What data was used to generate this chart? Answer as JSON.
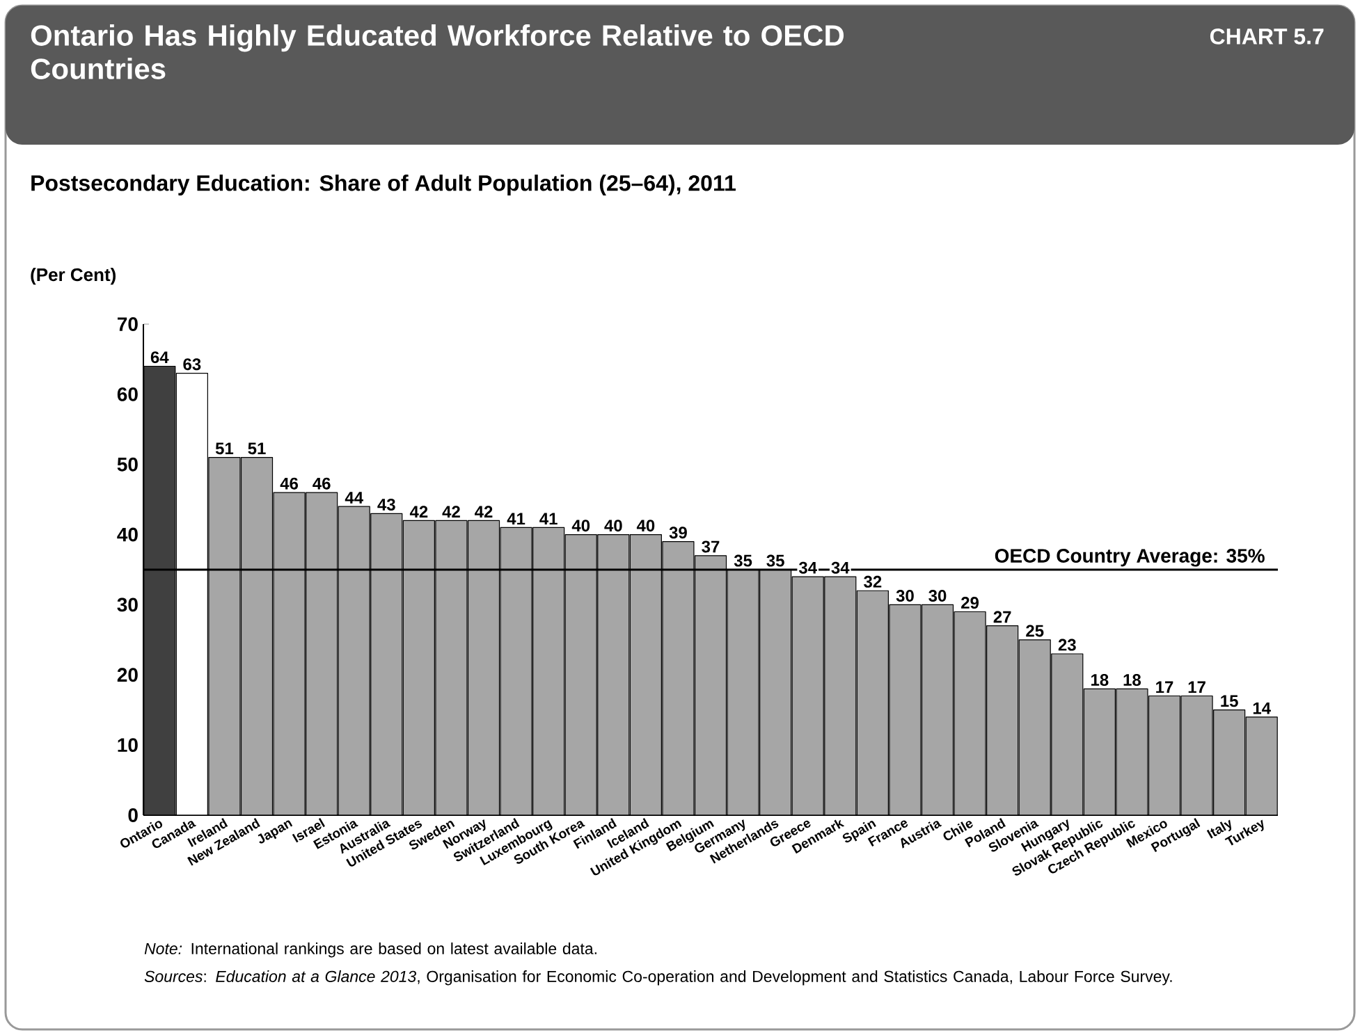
{
  "chart_data": {
    "type": "bar",
    "title": "Ontario Has Highly Educated Workforce Relative to OECD Countries",
    "subtitle": "Postsecondary Education: Share of Adult Population (25–64), 2011",
    "ylabel": "(Per Cent)",
    "categories": [
      "Ontario",
      "Canada",
      "Ireland",
      "New Zealand",
      "Japan",
      "Israel",
      "Estonia",
      "Australia",
      "United States",
      "Sweden",
      "Norway",
      "Switzerland",
      "Luxembourg",
      "South Korea",
      "Finland",
      "Iceland",
      "United Kingdom",
      "Belgium",
      "Germany",
      "Netherlands",
      "Greece",
      "Denmark",
      "Spain",
      "France",
      "Austria",
      "Chile",
      "Poland",
      "Slovenia",
      "Hungary",
      "Slovak Republic",
      "Czech Republic",
      "Mexico",
      "Portugal",
      "Italy",
      "Turkey"
    ],
    "values": [
      64,
      63,
      51,
      51,
      46,
      46,
      44,
      43,
      42,
      42,
      42,
      41,
      41,
      40,
      40,
      40,
      39,
      37,
      35,
      35,
      34,
      34,
      32,
      30,
      30,
      29,
      27,
      25,
      23,
      18,
      18,
      17,
      17,
      15,
      14
    ],
    "colors": [
      "#404040",
      "#ffffff",
      "#a6a6a6",
      "#a6a6a6",
      "#a6a6a6",
      "#a6a6a6",
      "#a6a6a6",
      "#a6a6a6",
      "#a6a6a6",
      "#a6a6a6",
      "#a6a6a6",
      "#a6a6a6",
      "#a6a6a6",
      "#a6a6a6",
      "#a6a6a6",
      "#a6a6a6",
      "#a6a6a6",
      "#a6a6a6",
      "#a6a6a6",
      "#a6a6a6",
      "#a6a6a6",
      "#a6a6a6",
      "#a6a6a6",
      "#a6a6a6",
      "#a6a6a6",
      "#a6a6a6",
      "#a6a6a6",
      "#a6a6a6",
      "#a6a6a6",
      "#a6a6a6",
      "#a6a6a6",
      "#a6a6a6",
      "#a6a6a6",
      "#a6a6a6",
      "#a6a6a6"
    ],
    "ylim": [
      0,
      70
    ],
    "yticks": [
      0,
      10,
      20,
      30,
      40,
      50,
      60,
      70
    ],
    "data_labels": true,
    "ref_lines": [
      {
        "axis": "y",
        "value": 35,
        "label": "OECD Country Average: 35%",
        "color": "#000000"
      }
    ],
    "annotations": [
      "CHART 5.7",
      "*Note:* International rankings are based on latest available data.",
      "*Sources*: *Education at a Glance 2013*, Organisation for Economic Co-operation and Development and Statistics Canada, Labour Force Survey."
    ]
  }
}
